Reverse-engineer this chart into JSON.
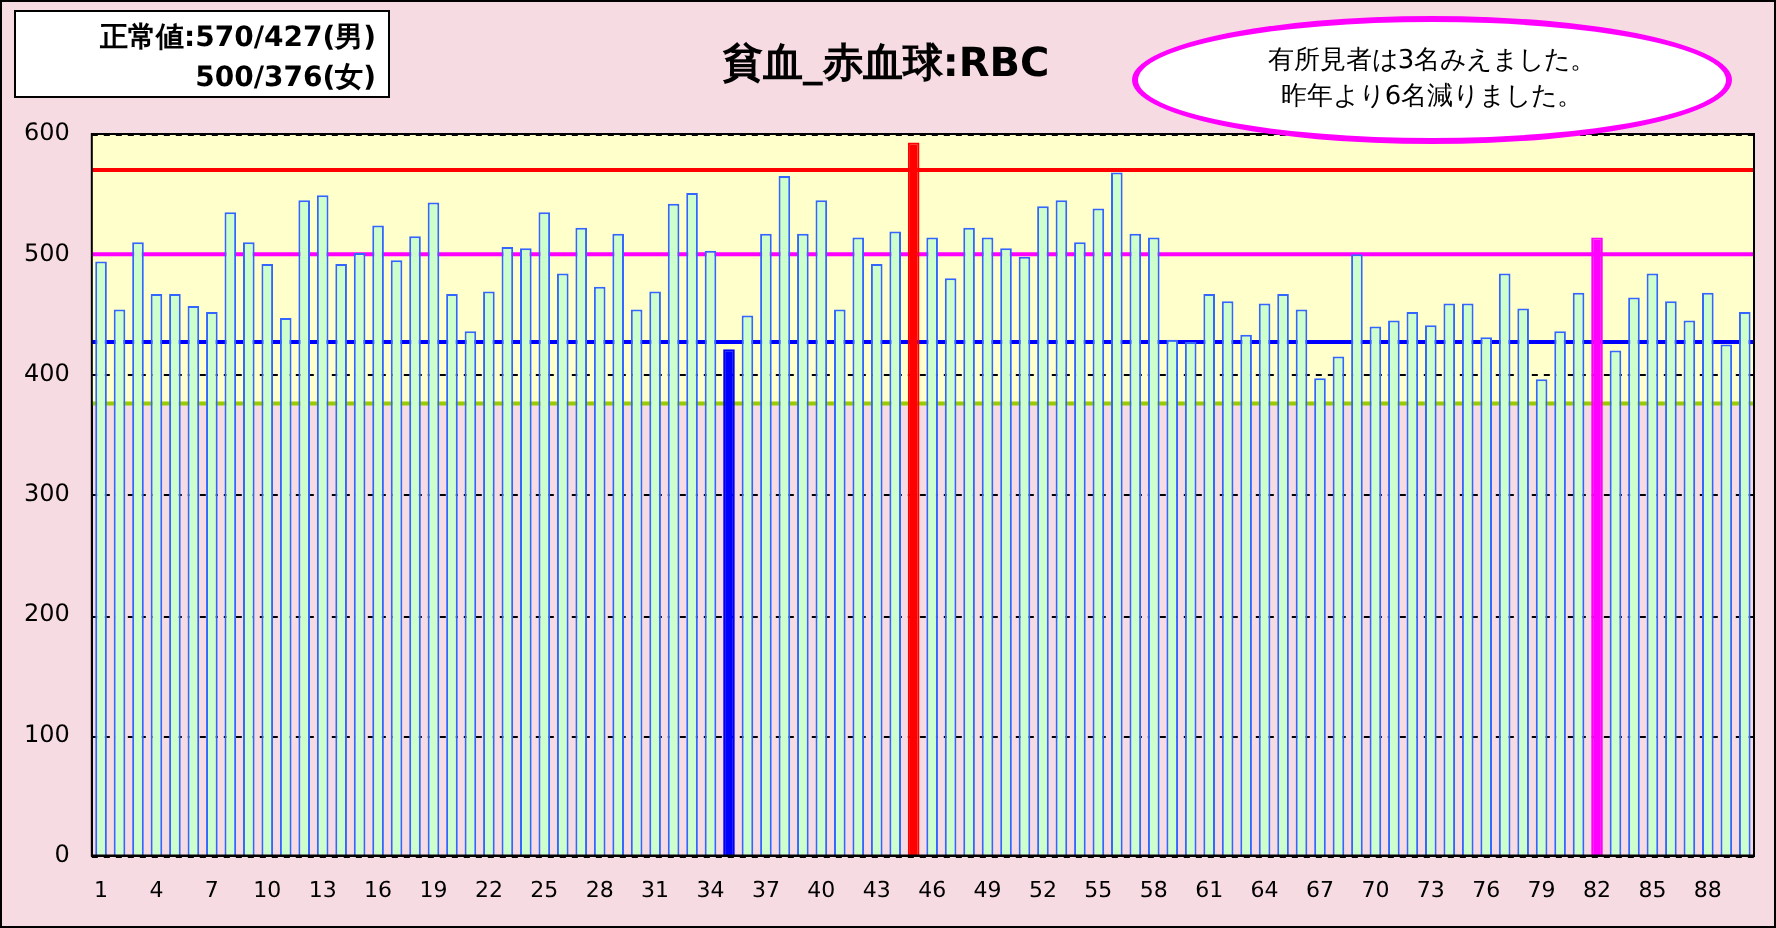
{
  "chart_data": {
    "type": "bar",
    "title": "貧血_赤血球:RBC",
    "categories": [
      "1",
      null,
      null,
      "4",
      null,
      null,
      "7",
      null,
      null,
      "10",
      null,
      null,
      "13",
      null,
      null,
      "16",
      null,
      null,
      "19",
      null,
      null,
      "22",
      null,
      null,
      "25",
      null,
      null,
      "28",
      null,
      null,
      "31",
      null,
      null,
      "34",
      null,
      null,
      "37",
      null,
      null,
      "40",
      null,
      null,
      "43",
      null,
      null,
      "46",
      null,
      null,
      "49",
      null,
      null,
      "52",
      null,
      null,
      "55",
      null,
      null,
      "58",
      null,
      null,
      "61",
      null,
      null,
      "64",
      null,
      null,
      "67",
      null,
      null,
      "70",
      null,
      null,
      "73",
      null,
      null,
      "76",
      null,
      null,
      "79",
      null,
      null,
      "82",
      null,
      null,
      "85",
      null,
      null,
      "88",
      null,
      null
    ],
    "series": [
      {
        "color": "#ccffcc",
        "values": [
          494,
          454,
          510,
          467,
          467,
          457,
          452,
          535,
          510,
          492,
          447,
          545,
          549,
          492,
          501,
          524,
          495,
          515,
          543,
          467,
          436,
          469,
          506,
          505,
          535,
          484,
          522,
          473,
          517,
          454,
          469,
          542,
          551,
          503,
          421,
          449,
          517,
          565,
          517,
          545,
          454,
          514,
          492,
          519,
          593,
          514,
          480,
          522,
          514,
          505,
          498,
          540,
          545,
          510,
          538,
          568,
          517,
          514,
          429,
          427,
          467,
          461,
          433,
          459,
          467,
          454,
          397,
          415,
          500,
          440,
          445,
          452,
          441,
          459,
          459,
          431,
          484,
          455,
          396,
          436,
          468,
          514,
          420,
          464,
          484,
          461,
          445,
          468,
          425,
          452
        ],
        "colors": [
          "#ccffcc",
          "#ccffcc",
          "#ccffcc",
          "#ccffcc",
          "#ccffcc",
          "#ccffcc",
          "#ccffcc",
          "#ccffcc",
          "#ccffcc",
          "#ccffcc",
          "#ccffcc",
          "#ccffcc",
          "#ccffcc",
          "#ccffcc",
          "#ccffcc",
          "#ccffcc",
          "#ccffcc",
          "#ccffcc",
          "#ccffcc",
          "#ccffcc",
          "#ccffcc",
          "#ccffcc",
          "#ccffcc",
          "#ccffcc",
          "#ccffcc",
          "#ccffcc",
          "#ccffcc",
          "#ccffcc",
          "#ccffcc",
          "#ccffcc",
          "#ccffcc",
          "#ccffcc",
          "#ccffcc",
          "#ccffcc",
          "#0000ff",
          "#ccffcc",
          "#ccffcc",
          "#ccffcc",
          "#ccffcc",
          "#ccffcc",
          "#ccffcc",
          "#ccffcc",
          "#ccffcc",
          "#ccffcc",
          "#ff0000",
          "#ccffcc",
          "#ccffcc",
          "#ccffcc",
          "#ccffcc",
          "#ccffcc",
          "#ccffcc",
          "#ccffcc",
          "#ccffcc",
          "#ccffcc",
          "#ccffcc",
          "#ccffcc",
          "#ccffcc",
          "#ccffcc",
          "#ccffcc",
          "#ccffcc",
          "#ccffcc",
          "#ccffcc",
          "#ccffcc",
          "#ccffcc",
          "#ccffcc",
          "#ccffcc",
          "#ccffcc",
          "#ccffcc",
          "#ccffcc",
          "#ccffcc",
          "#ccffcc",
          "#ccffcc",
          "#ccffcc",
          "#ccffcc",
          "#ccffcc",
          "#ccffcc",
          "#ccffcc",
          "#ccffcc",
          "#ccffcc",
          "#ccffcc",
          "#ccffcc",
          "#ff00ff",
          "#ccffcc",
          "#ccffcc",
          "#ccffcc",
          "#ccffcc",
          "#ccffcc",
          "#ccffcc",
          "#ccffcc",
          "#ccffcc"
        ]
      }
    ],
    "ylim": [
      0,
      600
    ],
    "yticks": [
      0,
      100,
      200,
      300,
      400,
      500,
      600
    ],
    "grid": "y",
    "legend": false,
    "ref_lines": [
      {
        "axis": "y",
        "value": 570,
        "color": "#ff0000"
      },
      {
        "axis": "y",
        "value": 500,
        "color": "#ff00ff"
      },
      {
        "axis": "y",
        "value": 427,
        "color": "#0000ff"
      },
      {
        "axis": "y",
        "value": 376,
        "color": "#99cc00"
      }
    ],
    "bands": [
      {
        "axis": "y",
        "from": 376,
        "to": 600,
        "color": "#ffffcc"
      }
    ],
    "annotations": [
      "正常値:570/427(男)",
      "500/376(女)",
      "有所見者は3名みえました。",
      "昨年より6名減りました。"
    ]
  }
}
